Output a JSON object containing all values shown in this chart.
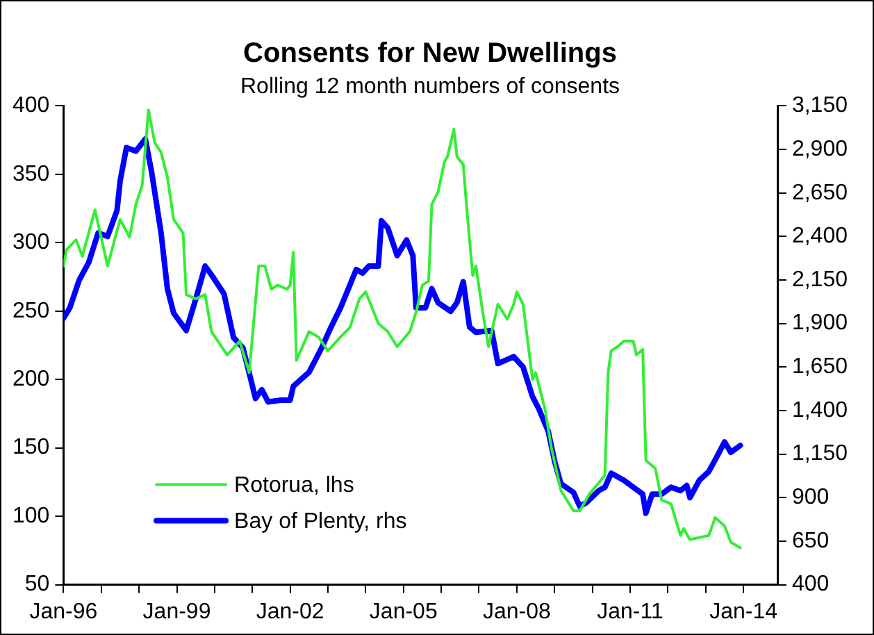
{
  "chart_data": {
    "type": "line",
    "title": "Consents for New Dwellings",
    "subtitle": "Rolling 12 month numbers of consents",
    "xlim": [
      "1996-01",
      "2014-12"
    ],
    "xticks": [
      {
        "value": "1996-01",
        "label": "Jan-96"
      },
      {
        "value": "1997-01",
        "label": null
      },
      {
        "value": "1998-01",
        "label": null
      },
      {
        "value": "1999-01",
        "label": "Jan-99"
      },
      {
        "value": "2000-01",
        "label": null
      },
      {
        "value": "2001-01",
        "label": null
      },
      {
        "value": "2002-01",
        "label": "Jan-02"
      },
      {
        "value": "2003-01",
        "label": null
      },
      {
        "value": "2004-01",
        "label": null
      },
      {
        "value": "2005-01",
        "label": "Jan-05"
      },
      {
        "value": "2006-01",
        "label": null
      },
      {
        "value": "2007-01",
        "label": null
      },
      {
        "value": "2008-01",
        "label": "Jan-08"
      },
      {
        "value": "2009-01",
        "label": null
      },
      {
        "value": "2010-01",
        "label": null
      },
      {
        "value": "2011-01",
        "label": "Jan-11"
      },
      {
        "value": "2012-01",
        "label": null
      },
      {
        "value": "2013-01",
        "label": null
      },
      {
        "value": "2014-01",
        "label": "Jan-14"
      }
    ],
    "ylim": [
      50,
      400
    ],
    "yticks": [
      50,
      100,
      150,
      200,
      250,
      300,
      350,
      400
    ],
    "y2lim": [
      400,
      3150
    ],
    "y2ticks": [
      400,
      {
        "value": 650,
        "label": "650"
      },
      {
        "value": 900,
        "label": "900"
      },
      {
        "value": 1150,
        "label": "1,150"
      },
      {
        "value": 1400,
        "label": "1,400"
      },
      {
        "value": 1650,
        "label": "1,650"
      },
      {
        "value": 1900,
        "label": "1,900"
      },
      {
        "value": 2150,
        "label": "2,150"
      },
      {
        "value": 2400,
        "label": "2,400"
      },
      {
        "value": 2650,
        "label": "2,650"
      },
      {
        "value": 2900,
        "label": "2,900"
      },
      {
        "value": 3150,
        "label": "3,150"
      }
    ],
    "grid": false,
    "legend": "bottom left",
    "series": [
      {
        "name": "Rotorua, lhs",
        "color": "#33ee33",
        "x": [
          "1996-01",
          "1996-02",
          "1996-05",
          "1996-07",
          "1996-11",
          "1997-03",
          "1997-07",
          "1997-10",
          "1997-12",
          "1998-02",
          "1998-04",
          "1998-06",
          "1998-08",
          "1998-10",
          "1998-12",
          "1999-03",
          "1999-04",
          "1999-07",
          "1999-10",
          "1999-12",
          "2000-05",
          "2000-09",
          "2000-12",
          "2001-03",
          "2001-05",
          "2001-07",
          "2001-09",
          "2001-12",
          "2002-01",
          "2002-02",
          "2002-03",
          "2002-07",
          "2002-10",
          "2003-01",
          "2003-05",
          "2003-08",
          "2003-11",
          "2004-01",
          "2004-05",
          "2004-08",
          "2004-11",
          "2005-03",
          "2005-05",
          "2005-07",
          "2005-09",
          "2005-10",
          "2005-12",
          "2006-02",
          "2006-03",
          "2006-05",
          "2006-06",
          "2006-08",
          "2006-09",
          "2006-11",
          "2006-12",
          "2007-02",
          "2007-04",
          "2007-07",
          "2007-10",
          "2007-12",
          "2008-01",
          "2008-03",
          "2008-06",
          "2008-07",
          "2008-10",
          "2008-12",
          "2009-03",
          "2009-07",
          "2009-09",
          "2009-12",
          "2010-05",
          "2010-06",
          "2010-07",
          "2010-09",
          "2010-11",
          "2011-02",
          "2011-03",
          "2011-05",
          "2011-06",
          "2011-09",
          "2011-11",
          "2012-02",
          "2012-05",
          "2012-06",
          "2012-08",
          "2012-12",
          "2013-02",
          "2013-04",
          "2013-07",
          "2013-09",
          "2013-12"
        ],
        "values": [
          283,
          295,
          302,
          290,
          324,
          283,
          317,
          304,
          328,
          342,
          397,
          373,
          366,
          348,
          317,
          307,
          262,
          259,
          262,
          235,
          218,
          228,
          205,
          283,
          283,
          266,
          269,
          266,
          269,
          293,
          214,
          235,
          231,
          221,
          231,
          238,
          259,
          264,
          241,
          235,
          224,
          235,
          249,
          269,
          272,
          328,
          337,
          359,
          363,
          383,
          363,
          357,
          328,
          276,
          283,
          252,
          224,
          255,
          244,
          255,
          264,
          255,
          200,
          205,
          178,
          150,
          119,
          104,
          104,
          116,
          130,
          205,
          221,
          224,
          228,
          228,
          218,
          222,
          141,
          135,
          112,
          109,
          86,
          91,
          83,
          85,
          86,
          99,
          93,
          81,
          77
        ]
      },
      {
        "name": "Bay of Plenty, rhs",
        "color": "#0000ff",
        "axis": "y2",
        "x": [
          "1996-01",
          "1996-03",
          "1996-06",
          "1996-09",
          "1996-12",
          "1997-03",
          "1997-05",
          "1997-06",
          "1997-07",
          "1997-09",
          "1997-12",
          "1998-03",
          "1998-05",
          "1998-08",
          "1998-10",
          "1998-12",
          "1999-04",
          "1999-07",
          "1999-10",
          "1999-12",
          "2000-04",
          "2000-07",
          "2000-10",
          "2001-02",
          "2001-04",
          "2001-06",
          "2001-10",
          "2002-01",
          "2002-02",
          "2002-07",
          "2002-11",
          "2003-02",
          "2003-05",
          "2003-10",
          "2003-12",
          "2004-02",
          "2004-05",
          "2004-06",
          "2004-08",
          "2004-11",
          "2005-02",
          "2005-04",
          "2005-05",
          "2005-08",
          "2005-10",
          "2005-12",
          "2006-04",
          "2006-06",
          "2006-08",
          "2006-10",
          "2006-12",
          "2007-05",
          "2007-07",
          "2007-12",
          "2008-03",
          "2008-06",
          "2008-08",
          "2008-11",
          "2009-01",
          "2009-03",
          "2009-07",
          "2009-09",
          "2009-11",
          "2010-03",
          "2010-05",
          "2010-07",
          "2010-11",
          "2011-02",
          "2011-05",
          "2011-06",
          "2011-08",
          "2011-11",
          "2012-02",
          "2012-05",
          "2012-07",
          "2012-08",
          "2012-11",
          "2013-02",
          "2013-05",
          "2013-07",
          "2013-09",
          "2013-12"
        ],
        "values": [
          1930,
          1990,
          2150,
          2250,
          2420,
          2400,
          2500,
          2550,
          2720,
          2910,
          2890,
          2960,
          2770,
          2420,
          2100,
          1960,
          1860,
          2040,
          2230,
          2180,
          2070,
          1820,
          1760,
          1470,
          1520,
          1450,
          1460,
          1460,
          1540,
          1620,
          1760,
          1880,
          1990,
          2210,
          2190,
          2230,
          2230,
          2490,
          2450,
          2290,
          2380,
          2290,
          1990,
          1990,
          2100,
          2020,
          1970,
          2020,
          2140,
          1880,
          1850,
          1860,
          1670,
          1710,
          1650,
          1480,
          1410,
          1280,
          1110,
          980,
          930,
          850,
          870,
          940,
          960,
          1040,
          1000,
          960,
          920,
          810,
          920,
          920,
          960,
          940,
          970,
          900,
          1000,
          1050,
          1150,
          1220,
          1160,
          1200
        ]
      }
    ]
  }
}
